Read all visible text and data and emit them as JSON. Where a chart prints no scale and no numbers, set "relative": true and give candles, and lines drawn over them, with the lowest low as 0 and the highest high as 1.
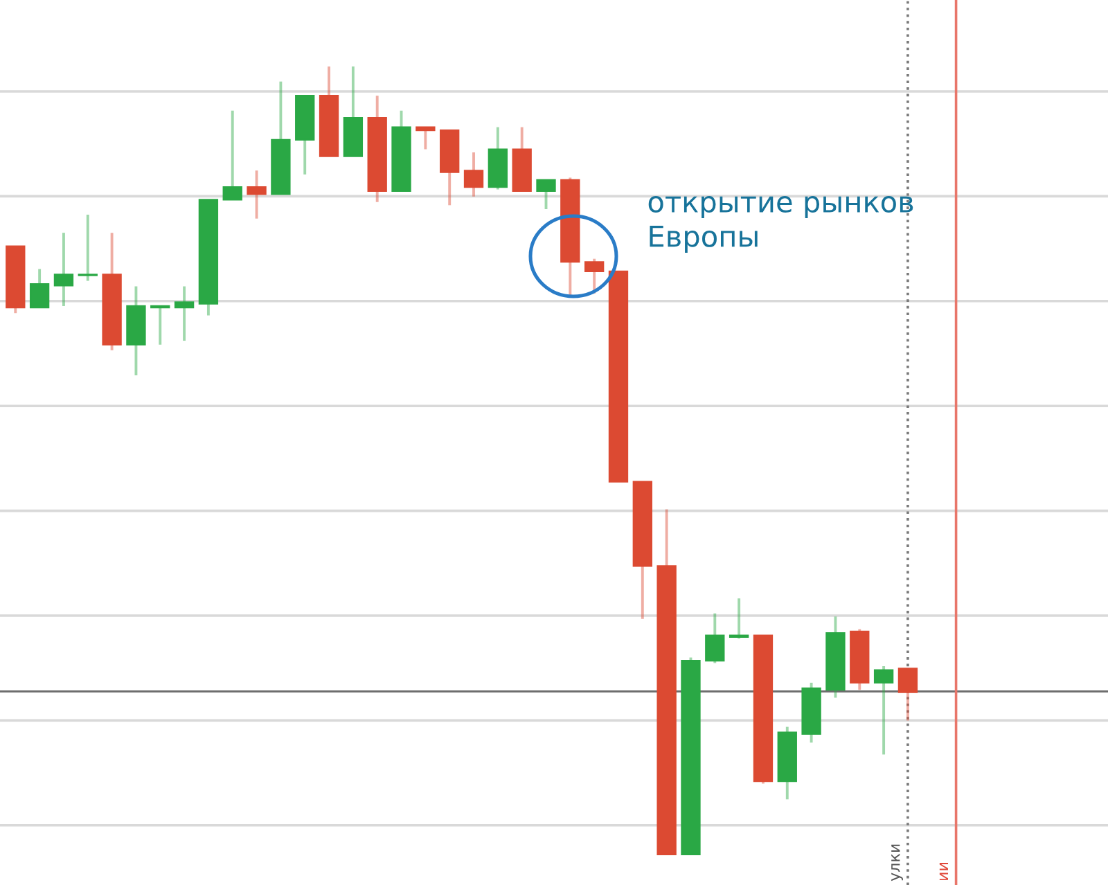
{
  "chart_data": {
    "type": "candlestick",
    "relative": true,
    "categories": [
      null,
      null,
      null,
      null,
      null,
      null,
      null,
      null,
      null,
      null,
      null,
      null,
      null,
      null,
      null,
      null,
      null,
      null,
      null,
      null,
      null,
      null,
      null,
      null,
      null,
      null,
      null,
      null,
      null,
      null,
      null,
      null,
      null,
      null,
      null,
      null,
      null,
      null
    ],
    "ohlc": [
      [
        0.772,
        0.772,
        0.687,
        0.694
      ],
      [
        0.694,
        0.743,
        0.694,
        0.724
      ],
      [
        0.722,
        0.789,
        0.696,
        0.736
      ],
      [
        0.735,
        0.812,
        0.728,
        0.736
      ],
      [
        0.736,
        0.789,
        0.64,
        0.647
      ],
      [
        0.647,
        0.721,
        0.608,
        0.696
      ],
      [
        0.694,
        0.696,
        0.647,
        0.696
      ],
      [
        0.694,
        0.721,
        0.652,
        0.701
      ],
      [
        0.699,
        0.831,
        0.684,
        0.831
      ],
      [
        0.831,
        0.944,
        0.831,
        0.847
      ],
      [
        0.847,
        0.868,
        0.807,
        0.838
      ],
      [
        0.838,
        0.981,
        0.838,
        0.907
      ],
      [
        0.907,
        0.963,
        0.863,
        0.963
      ],
      [
        0.963,
        1.0,
        0.886,
        0.886
      ],
      [
        0.886,
        1.0,
        0.886,
        0.935
      ],
      [
        0.935,
        0.963,
        0.828,
        0.842
      ],
      [
        0.842,
        0.944,
        0.842,
        0.923
      ],
      [
        0.923,
        0.923,
        0.895,
        0.919
      ],
      [
        0.919,
        0.919,
        0.824,
        0.866
      ],
      [
        0.868,
        0.891,
        0.835,
        0.847
      ],
      [
        0.847,
        0.923,
        0.844,
        0.895
      ],
      [
        0.895,
        0.923,
        0.842,
        0.842
      ],
      [
        0.842,
        0.856,
        0.819,
        0.856
      ],
      [
        0.856,
        0.859,
        0.71,
        0.752
      ],
      [
        0.752,
        0.756,
        0.712,
        0.74
      ],
      [
        0.74,
        0.74,
        0.473,
        0.473
      ],
      [
        0.473,
        0.473,
        0.299,
        0.366
      ],
      [
        0.366,
        0.438,
        0.0,
        0.0
      ],
      [
        0.0,
        0.25,
        0.0,
        0.246
      ],
      [
        0.246,
        0.306,
        0.243,
        0.278
      ],
      [
        0.276,
        0.325,
        0.274,
        0.278
      ],
      [
        0.278,
        0.278,
        0.09,
        0.093
      ],
      [
        0.093,
        0.162,
        0.07,
        0.155
      ],
      [
        0.153,
        0.218,
        0.142,
        0.211
      ],
      [
        0.209,
        0.302,
        0.199,
        0.281
      ],
      [
        0.283,
        0.286,
        0.209,
        0.218
      ],
      [
        0.218,
        0.239,
        0.127,
        0.234
      ],
      [
        0.236,
        0.236,
        0.17,
        0.206
      ]
    ],
    "colors": [
      "#dc4a32",
      "#2aa845",
      "#2aa845",
      "#2aa845",
      "#dc4a32",
      "#2aa845",
      "#2aa845",
      "#2aa845",
      "#2aa845",
      "#2aa845",
      "#dc4a32",
      "#2aa845",
      "#2aa845",
      "#dc4a32",
      "#2aa845",
      "#dc4a32",
      "#2aa845",
      "#dc4a32",
      "#dc4a32",
      "#dc4a32",
      "#2aa845",
      "#dc4a32",
      "#2aa845",
      "#dc4a32",
      "#dc4a32",
      "#dc4a32",
      "#dc4a32",
      "#dc4a32",
      "#2aa845",
      "#2aa845",
      "#2aa845",
      "#dc4a32",
      "#2aa845",
      "#2aa845",
      "#2aa845",
      "#dc4a32",
      "#2aa845",
      "#dc4a32"
    ],
    "grid": "y",
    "ref_lines": [
      {
        "axis": "y",
        "value": 0.207,
        "color": "#6e6e6e",
        "line_style": "solid"
      }
    ],
    "annotations": [
      "открытие рынков\nЕвропы",
      "улки",
      "ии"
    ]
  }
}
